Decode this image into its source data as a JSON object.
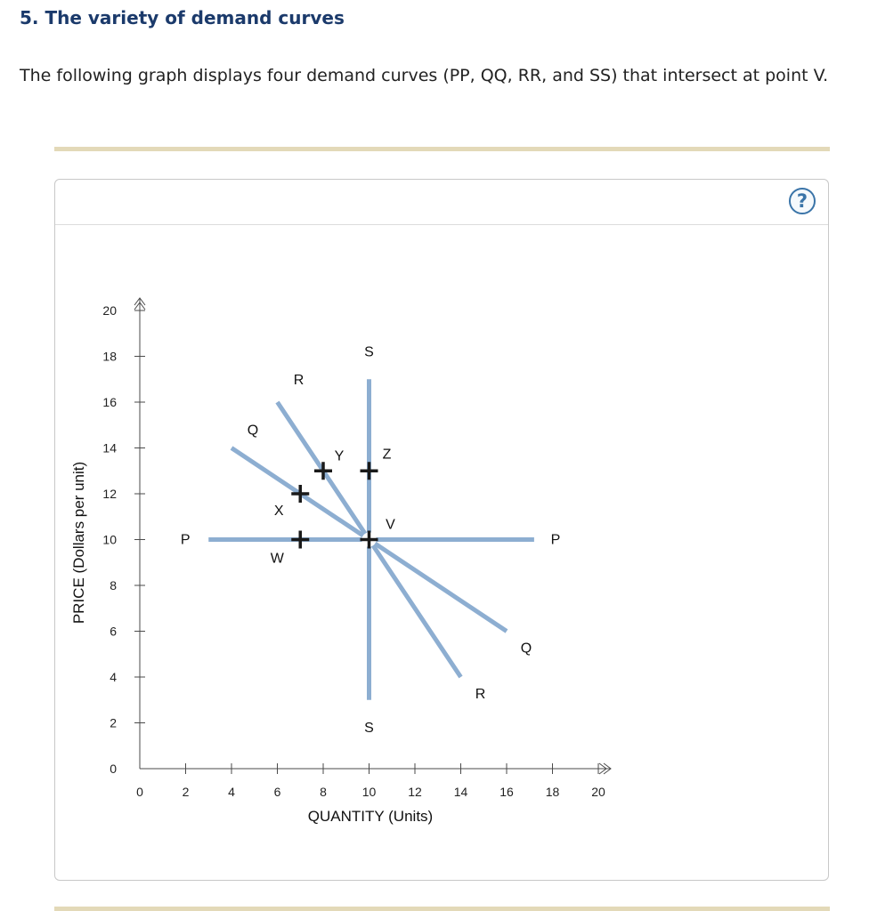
{
  "question": {
    "title": "5. The variety of demand curves",
    "text": "The following graph displays four demand curves (PP, QQ, RR, and SS) that intersect at point V."
  },
  "help": {
    "label": "?"
  },
  "colors": {
    "curve": "#8daed1",
    "axis": "#4a4a4a",
    "marker": "#1a1a1a",
    "title": "#1b3a6b"
  },
  "chart_data": {
    "type": "line",
    "xlabel": "QUANTITY (Units)",
    "ylabel": "PRICE (Dollars per unit)",
    "xlim": [
      0,
      20
    ],
    "ylim": [
      0,
      20
    ],
    "x_ticks": [
      "0",
      "2",
      "4",
      "6",
      "8",
      "10",
      "12",
      "14",
      "16",
      "18",
      "20"
    ],
    "y_ticks": [
      "0",
      "2",
      "4",
      "6",
      "8",
      "10",
      "12",
      "14",
      "16",
      "18",
      "20"
    ],
    "series": [
      {
        "name": "PP",
        "points": [
          [
            3,
            10
          ],
          [
            17.2,
            10
          ]
        ],
        "start_label": "P",
        "end_label": "P"
      },
      {
        "name": "QQ",
        "points": [
          [
            4,
            14
          ],
          [
            16,
            6
          ]
        ],
        "start_label": "Q",
        "end_label": "Q"
      },
      {
        "name": "RR",
        "points": [
          [
            6,
            16
          ],
          [
            14,
            4
          ]
        ],
        "start_label": "R",
        "end_label": "R"
      },
      {
        "name": "SS",
        "points": [
          [
            10,
            17
          ],
          [
            10,
            3
          ]
        ],
        "start_label": "S",
        "end_label": "S"
      }
    ],
    "points": [
      {
        "label": "V",
        "x": 10,
        "y": 10
      },
      {
        "label": "W",
        "x": 7,
        "y": 10
      },
      {
        "label": "X",
        "x": 7,
        "y": 12
      },
      {
        "label": "Y",
        "x": 8,
        "y": 13
      },
      {
        "label": "Z",
        "x": 10,
        "y": 13
      }
    ]
  }
}
